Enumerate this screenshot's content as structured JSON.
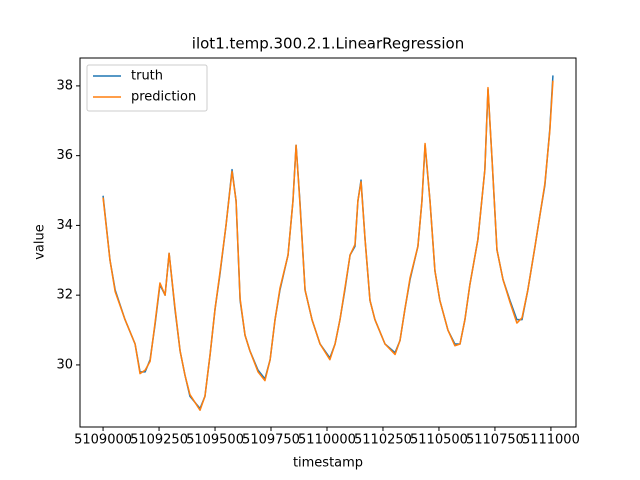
{
  "chart_data": {
    "type": "line",
    "title": "ilot1.temp.300.2.1.LinearRegression",
    "xlabel": "timestamp",
    "ylabel": "value",
    "x": [
      5109000,
      5109031,
      5109054,
      5109098,
      5109143,
      5109165,
      5109188,
      5109210,
      5109232,
      5109254,
      5109277,
      5109295,
      5109321,
      5109344,
      5109366,
      5109388,
      5109433,
      5109455,
      5109478,
      5109500,
      5109522,
      5109549,
      5109576,
      5109594,
      5109612,
      5109634,
      5109656,
      5109692,
      5109723,
      5109746,
      5109768,
      5109790,
      5109826,
      5109848,
      5109862,
      5109879,
      5109902,
      5109933,
      5109969,
      5110013,
      5110036,
      5110058,
      5110080,
      5110103,
      5110125,
      5110138,
      5110152,
      5110170,
      5110192,
      5110214,
      5110259,
      5110304,
      5110326,
      5110348,
      5110371,
      5110406,
      5110424,
      5110438,
      5110460,
      5110482,
      5110504,
      5110540,
      5110571,
      5110594,
      5110616,
      5110638,
      5110674,
      5110705,
      5110719,
      5110737,
      5110759,
      5110786,
      5110817,
      5110848,
      5110871,
      5110897,
      5110929,
      5110951,
      5110973,
      5110995,
      5111009
    ],
    "series": [
      {
        "name": "truth",
        "color": "#1f77b4",
        "values": [
          34.85,
          33.0,
          32.15,
          31.3,
          30.6,
          29.8,
          29.8,
          30.15,
          31.15,
          32.3,
          32.0,
          33.2,
          31.6,
          30.4,
          29.7,
          29.1,
          28.75,
          29.1,
          30.3,
          31.6,
          32.6,
          34.0,
          35.6,
          34.7,
          31.85,
          30.85,
          30.4,
          29.85,
          29.6,
          30.15,
          31.3,
          32.15,
          33.15,
          34.7,
          36.3,
          34.7,
          32.15,
          31.3,
          30.6,
          30.2,
          30.6,
          31.3,
          32.15,
          33.15,
          33.4,
          34.7,
          35.3,
          33.6,
          31.85,
          31.3,
          30.6,
          30.35,
          30.7,
          31.6,
          32.45,
          33.4,
          34.7,
          36.3,
          34.7,
          32.7,
          31.85,
          31.0,
          30.6,
          30.6,
          31.3,
          32.3,
          33.6,
          35.6,
          37.9,
          35.9,
          33.3,
          32.45,
          31.85,
          31.3,
          31.3,
          32.15,
          33.4,
          34.3,
          35.15,
          36.75,
          38.3
        ]
      },
      {
        "name": "prediction",
        "color": "#ff7f0e",
        "values": [
          34.8,
          33.0,
          32.1,
          31.3,
          30.6,
          29.75,
          29.85,
          30.1,
          31.2,
          32.35,
          32.0,
          33.2,
          31.65,
          30.4,
          29.7,
          29.15,
          28.7,
          29.1,
          30.3,
          31.6,
          32.65,
          34.0,
          35.55,
          34.7,
          31.9,
          30.85,
          30.4,
          29.8,
          29.55,
          30.15,
          31.3,
          32.2,
          33.15,
          34.7,
          36.3,
          34.65,
          32.15,
          31.3,
          30.6,
          30.15,
          30.6,
          31.3,
          32.2,
          33.15,
          33.45,
          34.7,
          35.25,
          33.6,
          31.85,
          31.3,
          30.6,
          30.3,
          30.7,
          31.6,
          32.5,
          33.4,
          34.7,
          36.35,
          34.7,
          32.7,
          31.85,
          31.0,
          30.55,
          30.6,
          31.3,
          32.3,
          33.6,
          35.6,
          37.95,
          35.9,
          33.3,
          32.45,
          31.8,
          31.2,
          31.35,
          32.15,
          33.4,
          34.3,
          35.2,
          36.7,
          38.15
        ]
      }
    ],
    "xlim": [
      5108897,
      5111112
    ],
    "ylim": [
      28.22,
      38.8
    ],
    "xticks": [
      5109000,
      5109250,
      5109500,
      5109750,
      5110000,
      5110250,
      5110500,
      5110750,
      5111000
    ],
    "yticks": [
      30,
      32,
      34,
      36,
      38
    ],
    "legend": "upper left"
  }
}
